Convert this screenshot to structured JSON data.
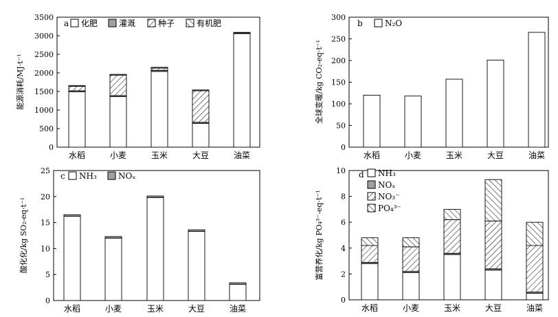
{
  "chart_data": [
    {
      "panel": "a",
      "type": "bar",
      "stacked": true,
      "categories": [
        "水稻",
        "小麦",
        "玉米",
        "大豆",
        "油菜"
      ],
      "ylabel": "能源消耗/MJ·t⁻¹",
      "ylim": [
        0,
        3500
      ],
      "yticks": [
        0,
        500,
        1000,
        1500,
        2000,
        2500,
        3000,
        3500
      ],
      "legend_position": "top-left",
      "series": [
        {
          "name": "化肥",
          "fill": "white",
          "values": [
            1490,
            1360,
            2040,
            640,
            3060
          ]
        },
        {
          "name": "灌溉",
          "fill": "gray",
          "values": [
            30,
            30,
            30,
            30,
            20
          ]
        },
        {
          "name": "种子",
          "fill": "hatch",
          "values": [
            120,
            550,
            60,
            850,
            0
          ]
        },
        {
          "name": "有机肥",
          "fill": "crosshatch",
          "values": [
            20,
            20,
            20,
            20,
            10
          ]
        }
      ]
    },
    {
      "panel": "b",
      "type": "bar",
      "stacked": true,
      "categories": [
        "水稻",
        "小麦",
        "玉米",
        "大豆",
        "油菜"
      ],
      "ylabel": "全球变暖/kg CO₂-eq·t⁻¹",
      "ylim": [
        0,
        300
      ],
      "yticks": [
        0,
        50,
        100,
        150,
        200,
        250,
        300
      ],
      "legend_position": "top-left",
      "series": [
        {
          "name": "N₂O",
          "fill": "white",
          "values": [
            120,
            118,
            157,
            201,
            265
          ]
        }
      ]
    },
    {
      "panel": "c",
      "type": "bar",
      "stacked": true,
      "categories": [
        "水稻",
        "小麦",
        "玉米",
        "大豆",
        "油菜"
      ],
      "ylabel": "酸化化/kg SO₂-eq·t⁻¹",
      "ylim": [
        0,
        25
      ],
      "yticks": [
        0,
        5,
        10,
        15,
        20,
        25
      ],
      "legend_position": "top-left",
      "series": [
        {
          "name": "NH₃",
          "fill": "white",
          "values": [
            16.2,
            12.0,
            19.8,
            13.3,
            3.1
          ]
        },
        {
          "name": "NOₓ",
          "fill": "gray",
          "values": [
            0.3,
            0.3,
            0.3,
            0.3,
            0.3
          ]
        }
      ]
    },
    {
      "panel": "d",
      "type": "bar",
      "stacked": true,
      "categories": [
        "水稻",
        "小麦",
        "玉米",
        "大豆",
        "油菜"
      ],
      "ylabel": "富营养化/kg PO₄³⁻-eq·t⁻¹",
      "ylim": [
        0,
        10
      ],
      "yticks": [
        0,
        2,
        4,
        6,
        8,
        10
      ],
      "legend_position": "top-left",
      "series": [
        {
          "name": "NH₃",
          "fill": "white",
          "values": [
            2.8,
            2.1,
            3.5,
            2.3,
            0.5
          ]
        },
        {
          "name": "NOₓ",
          "fill": "gray",
          "values": [
            0.1,
            0.1,
            0.1,
            0.1,
            0.1
          ]
        },
        {
          "name": "NO₃⁻",
          "fill": "hatch",
          "values": [
            1.3,
            1.9,
            2.6,
            3.7,
            3.6
          ]
        },
        {
          "name": "PO₄³⁻",
          "fill": "crosshatch",
          "values": [
            0.6,
            0.7,
            0.8,
            3.2,
            1.8
          ]
        }
      ]
    }
  ]
}
